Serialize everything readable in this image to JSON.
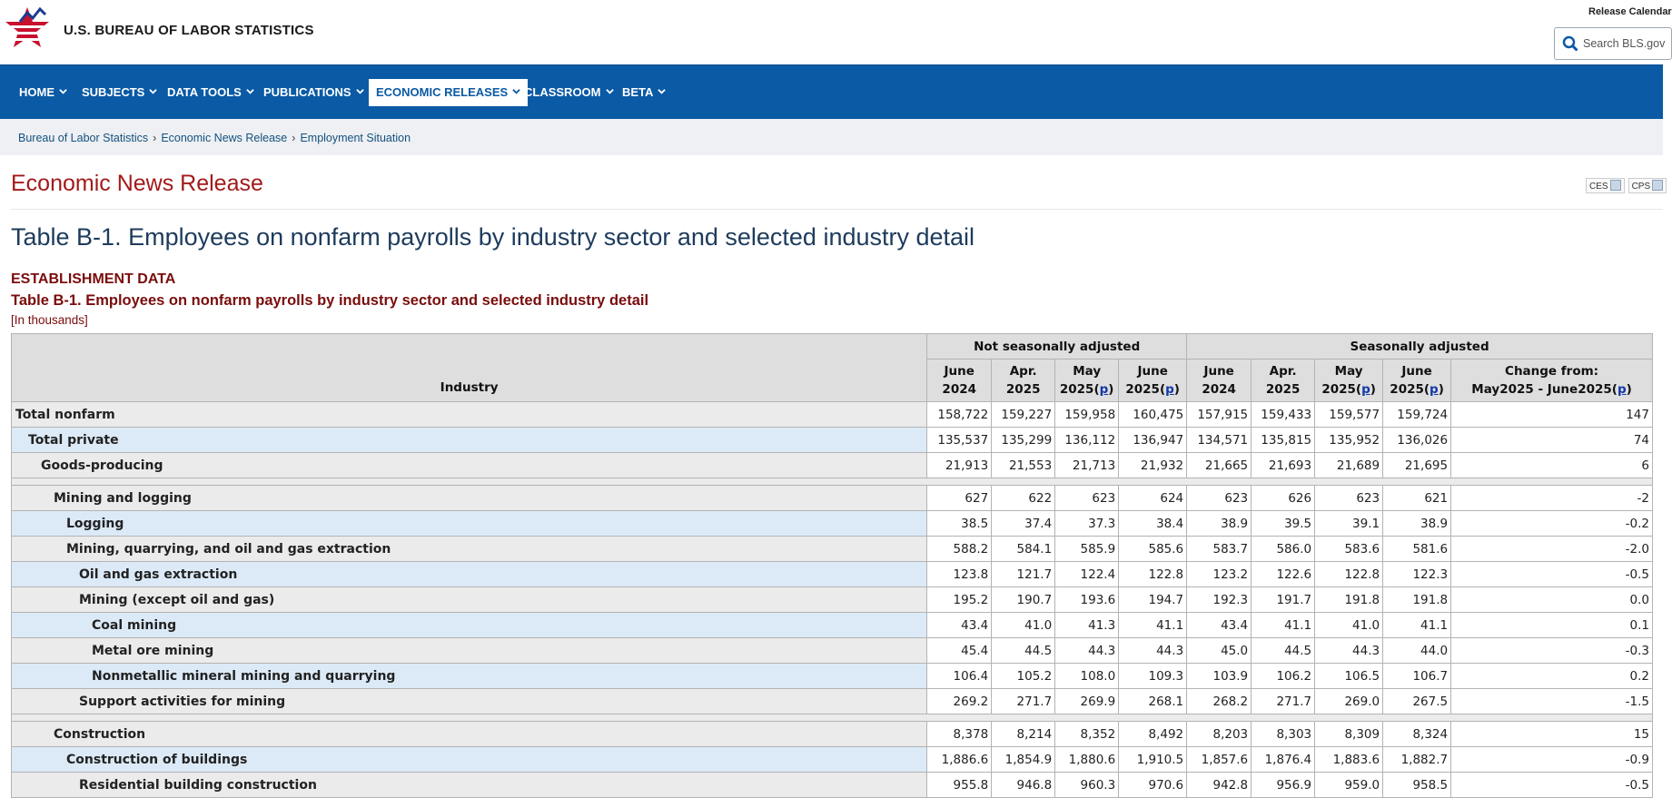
{
  "header": {
    "site_title": "U.S. BUREAU OF LABOR STATISTICS",
    "release_calendar": "Release Calendar",
    "search_placeholder": "Search BLS.gov"
  },
  "nav": [
    {
      "label": "HOME",
      "active": false
    },
    {
      "label": "SUBJECTS",
      "active": false
    },
    {
      "label": "DATA TOOLS",
      "active": false
    },
    {
      "label": "PUBLICATIONS",
      "active": false
    },
    {
      "label": "ECONOMIC RELEASES",
      "active": true
    },
    {
      "label": "CLASSROOM",
      "active": false
    },
    {
      "label": "BETA",
      "active": false
    }
  ],
  "breadcrumb": [
    "Bureau of Labor Statistics",
    "Economic News Release",
    "Employment Situation"
  ],
  "release_title": "Economic News Release",
  "ext_links": [
    "CES",
    "CPS"
  ],
  "table_title": "Table B-1. Employees on nonfarm payrolls by industry sector and selected industry detail",
  "establishment_label": "ESTABLISHMENT DATA",
  "table_caption": "Table B-1. Employees on nonfarm payrolls by industry sector and selected industry detail",
  "units": "[In thousands]",
  "table": {
    "industry_header": "Industry",
    "group_headers": [
      "Not seasonally adjusted",
      "Seasonally adjusted"
    ],
    "columns": [
      {
        "line1": "June",
        "line2": "2024",
        "p": false
      },
      {
        "line1": "Apr.",
        "line2": "2025",
        "p": false
      },
      {
        "line1": "May",
        "line2": "2025",
        "p": true
      },
      {
        "line1": "June",
        "line2": "2025",
        "p": true
      },
      {
        "line1": "June",
        "line2": "2024",
        "p": false
      },
      {
        "line1": "Apr.",
        "line2": "2025",
        "p": false
      },
      {
        "line1": "May",
        "line2": "2025",
        "p": true
      },
      {
        "line1": "June",
        "line2": "2025",
        "p": true
      }
    ],
    "change_header": {
      "line1": "Change from:",
      "line2": "May2025 - June2025",
      "p": true
    },
    "p_mark": "p",
    "rows": [
      {
        "label": "Total nonfarm",
        "indent": 0,
        "values": [
          "158,722",
          "159,227",
          "159,958",
          "160,475",
          "157,915",
          "159,433",
          "159,577",
          "159,724",
          "147"
        ]
      },
      {
        "label": "Total private",
        "indent": 1,
        "values": [
          "135,537",
          "135,299",
          "136,112",
          "136,947",
          "134,571",
          "135,815",
          "135,952",
          "136,026",
          "74"
        ]
      },
      {
        "label": "Goods-producing",
        "indent": 2,
        "values": [
          "21,913",
          "21,553",
          "21,713",
          "21,932",
          "21,665",
          "21,693",
          "21,689",
          "21,695",
          "6"
        ]
      },
      {
        "spacer": true
      },
      {
        "label": "Mining and logging",
        "indent": 3,
        "values": [
          "627",
          "622",
          "623",
          "624",
          "623",
          "626",
          "623",
          "621",
          "-2"
        ]
      },
      {
        "label": "Logging",
        "indent": 4,
        "values": [
          "38.5",
          "37.4",
          "37.3",
          "38.4",
          "38.9",
          "39.5",
          "39.1",
          "38.9",
          "-0.2"
        ]
      },
      {
        "label": "Mining, quarrying, and oil and gas extraction",
        "indent": 4,
        "values": [
          "588.2",
          "584.1",
          "585.9",
          "585.6",
          "583.7",
          "586.0",
          "583.6",
          "581.6",
          "-2.0"
        ]
      },
      {
        "label": "Oil and gas extraction",
        "indent": 5,
        "values": [
          "123.8",
          "121.7",
          "122.4",
          "122.8",
          "123.2",
          "122.6",
          "122.8",
          "122.3",
          "-0.5"
        ]
      },
      {
        "label": "Mining (except oil and gas)",
        "indent": 5,
        "values": [
          "195.2",
          "190.7",
          "193.6",
          "194.7",
          "192.3",
          "191.7",
          "191.8",
          "191.8",
          "0.0"
        ]
      },
      {
        "label": "Coal mining",
        "indent": 6,
        "values": [
          "43.4",
          "41.0",
          "41.3",
          "41.1",
          "43.4",
          "41.1",
          "41.0",
          "41.1",
          "0.1"
        ]
      },
      {
        "label": "Metal ore mining",
        "indent": 6,
        "values": [
          "45.4",
          "44.5",
          "44.3",
          "44.3",
          "45.0",
          "44.5",
          "44.3",
          "44.0",
          "-0.3"
        ]
      },
      {
        "label": "Nonmetallic mineral mining and quarrying",
        "indent": 6,
        "values": [
          "106.4",
          "105.2",
          "108.0",
          "109.3",
          "103.9",
          "106.2",
          "106.5",
          "106.7",
          "0.2"
        ]
      },
      {
        "label": "Support activities for mining",
        "indent": 5,
        "values": [
          "269.2",
          "271.7",
          "269.9",
          "268.1",
          "268.2",
          "271.7",
          "269.0",
          "267.5",
          "-1.5"
        ]
      },
      {
        "spacer": true
      },
      {
        "label": "Construction",
        "indent": 3,
        "values": [
          "8,378",
          "8,214",
          "8,352",
          "8,492",
          "8,203",
          "8,303",
          "8,309",
          "8,324",
          "15"
        ]
      },
      {
        "label": "Construction of buildings",
        "indent": 4,
        "values": [
          "1,886.6",
          "1,854.9",
          "1,880.6",
          "1,910.5",
          "1,857.6",
          "1,876.4",
          "1,883.6",
          "1,882.7",
          "-0.9"
        ]
      },
      {
        "label": "Residential building construction",
        "indent": 5,
        "values": [
          "955.8",
          "946.8",
          "960.3",
          "970.6",
          "942.8",
          "956.9",
          "959.0",
          "958.5",
          "-0.5"
        ]
      }
    ]
  },
  "colors": {
    "nav_bg": "#0a5aa5",
    "release_title": "#a31a1a",
    "caption": "#7a0c0c",
    "row_blue": "#dceaf7",
    "row_gray": "#ebebeb",
    "header_gray": "#dedede"
  }
}
